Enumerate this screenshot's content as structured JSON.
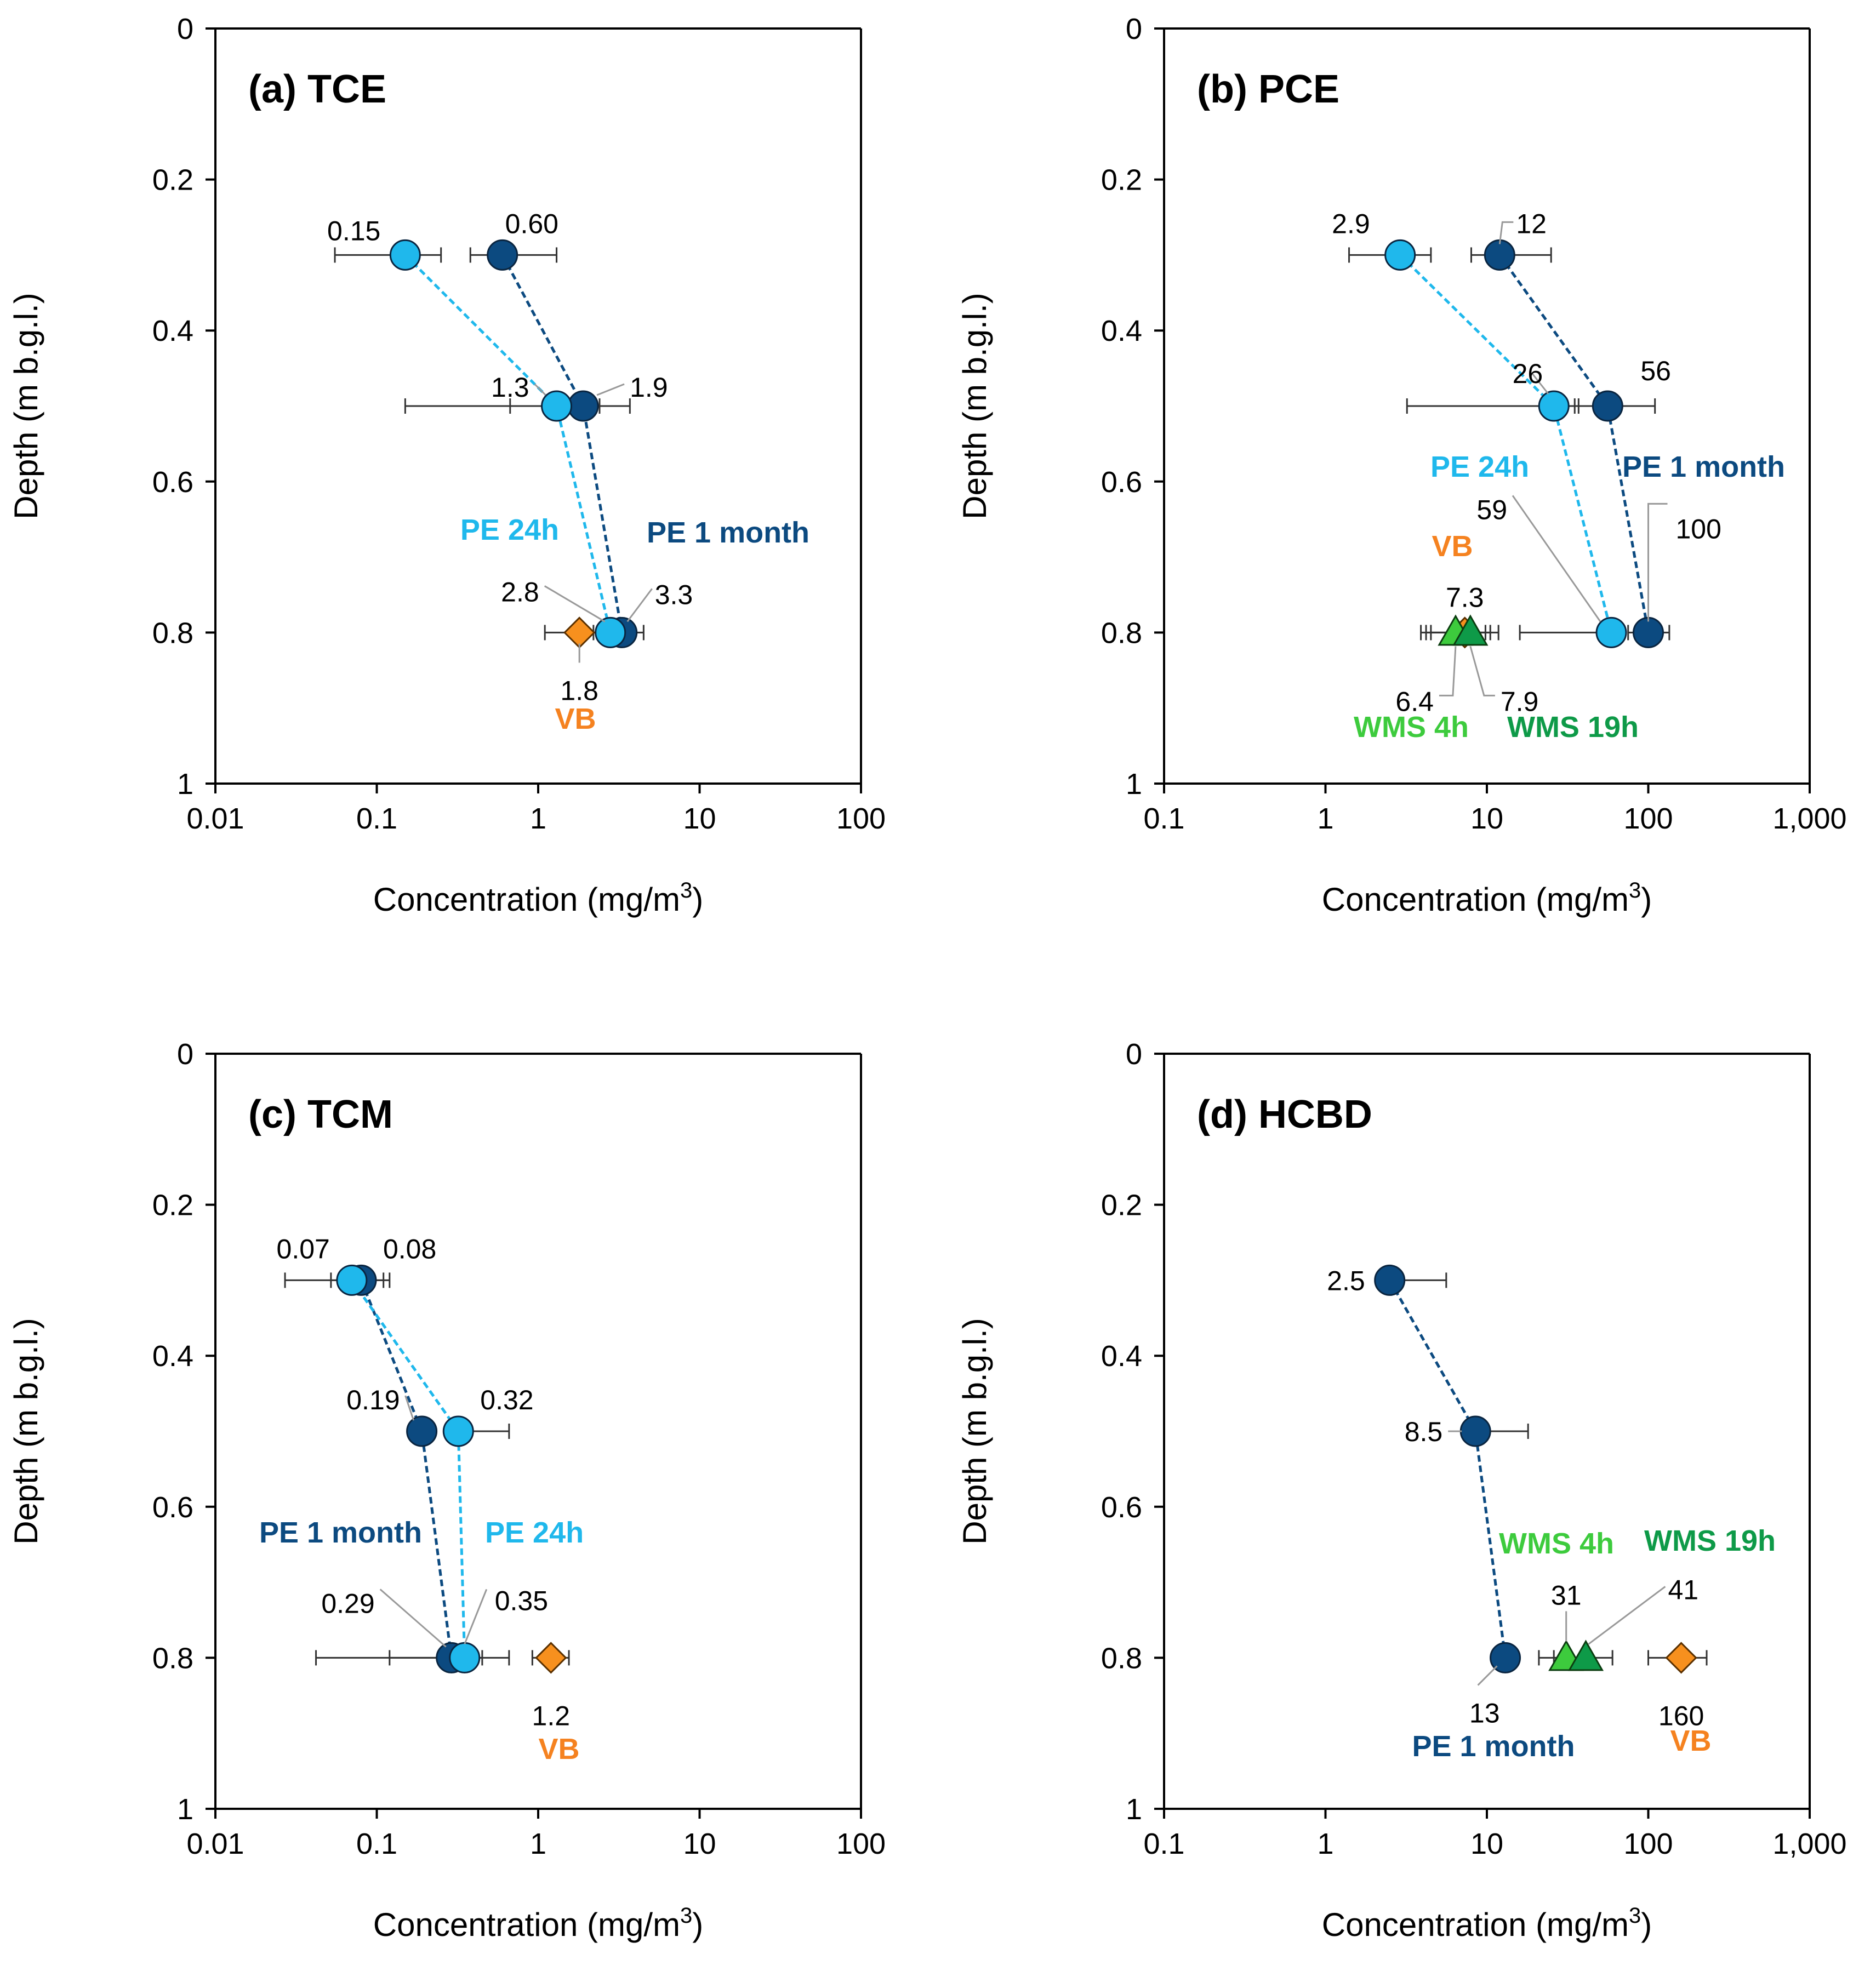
{
  "colors": {
    "pe_1month": "#0C4A80",
    "pe_24h": "#1FB8EC",
    "vb": "#F58220",
    "vb_fill": "#F7901E",
    "wms_4h": "#3DCB3D",
    "wms_19h": "#0E9A48",
    "axis": "#000000",
    "error_bar": "#333333",
    "leader": "#999999"
  },
  "chart_data": [
    {
      "type": "scatter",
      "title": "(a) TCE",
      "xlabel": "Concentration (mg/m",
      "xlabel_sup": "3",
      "xlabel_close": ")",
      "ylabel": "Depth (m b.g.l.)",
      "xscale": "log",
      "xlim": [
        0.01,
        100
      ],
      "ylim": [
        0,
        1
      ],
      "yreversed": true,
      "xticks": [
        0.01,
        0.1,
        1,
        10,
        100
      ],
      "xtick_labels": [
        "0.01",
        "0.1",
        "1",
        "10",
        "100"
      ],
      "yticks": [
        0,
        0.2,
        0.4,
        0.6,
        0.8,
        1
      ],
      "ytick_labels": [
        "0",
        "0.2",
        "0.4",
        "0.6",
        "0.8",
        "1"
      ],
      "series": [
        {
          "name": "PE 1 month",
          "marker": "circle",
          "color_key": "pe_1month",
          "connected": true,
          "points": [
            {
              "x": 0.6,
              "y": 0.3,
              "xerr": [
                0.38,
                1.3
              ],
              "label": "0.60"
            },
            {
              "x": 1.9,
              "y": 0.5,
              "xerr": [
                0.67,
                3.7
              ],
              "label": "1.9"
            },
            {
              "x": 3.3,
              "y": 0.8,
              "xerr": [
                2.4,
                4.5
              ],
              "label": "3.3"
            }
          ]
        },
        {
          "name": "PE 24h",
          "marker": "circle",
          "color_key": "pe_24h",
          "connected": true,
          "points": [
            {
              "x": 0.15,
              "y": 0.3,
              "xerr": [
                0.055,
                0.25
              ],
              "label": "0.15"
            },
            {
              "x": 1.3,
              "y": 0.5,
              "xerr": [
                0.15,
                2.4
              ],
              "label": "1.3"
            },
            {
              "x": 2.8,
              "y": 0.8,
              "xerr": [
                2.2,
                3.5
              ],
              "label": "2.8"
            }
          ]
        },
        {
          "name": "VB",
          "marker": "diamond",
          "color_key": "vb_fill",
          "connected": false,
          "points": [
            {
              "x": 1.8,
              "y": 0.8,
              "xerr": [
                1.1,
                2.5
              ],
              "label": "1.8"
            }
          ]
        }
      ],
      "annotations": [
        {
          "text": "PE 24h",
          "color_key": "pe_24h",
          "bold": true
        },
        {
          "text": "PE 1 month",
          "color_key": "pe_1month",
          "bold": true
        },
        {
          "text": "VB",
          "color_key": "vb",
          "bold": true
        }
      ]
    },
    {
      "type": "scatter",
      "title": "(b) PCE",
      "xlabel": "Concentration (mg/m",
      "xlabel_sup": "3",
      "xlabel_close": ")",
      "ylabel": "Depth (m b.g.l.)",
      "xscale": "log",
      "xlim": [
        0.1,
        1000
      ],
      "ylim": [
        0,
        1
      ],
      "yreversed": true,
      "xticks": [
        0.1,
        1,
        10,
        100,
        1000
      ],
      "xtick_labels": [
        "0.1",
        "1",
        "10",
        "100",
        "1,000"
      ],
      "yticks": [
        0,
        0.2,
        0.4,
        0.6,
        0.8,
        1
      ],
      "ytick_labels": [
        "0",
        "0.2",
        "0.4",
        "0.6",
        "0.8",
        "1"
      ],
      "series": [
        {
          "name": "PE 1 month",
          "marker": "circle",
          "color_key": "pe_1month",
          "connected": true,
          "points": [
            {
              "x": 12,
              "y": 0.3,
              "xerr": [
                8,
                25
              ],
              "label": "12"
            },
            {
              "x": 56,
              "y": 0.5,
              "xerr": [
                35,
                110
              ],
              "label": "56"
            },
            {
              "x": 100,
              "y": 0.8,
              "xerr": [
                75,
                135
              ],
              "label": "100"
            }
          ]
        },
        {
          "name": "PE 24h",
          "marker": "circle",
          "color_key": "pe_24h",
          "connected": true,
          "points": [
            {
              "x": 2.9,
              "y": 0.3,
              "xerr": [
                1.4,
                4.5
              ],
              "label": "2.9"
            },
            {
              "x": 26,
              "y": 0.5,
              "xerr": [
                3.2,
                37
              ],
              "label": "26"
            },
            {
              "x": 59,
              "y": 0.8,
              "xerr": [
                16,
                62
              ],
              "label": "59"
            }
          ]
        },
        {
          "name": "VB",
          "marker": "diamond",
          "color_key": "vb_fill",
          "connected": false,
          "points": [
            {
              "x": 7.3,
              "y": 0.8,
              "xerr": [
                4.2,
                10.5
              ],
              "label": "7.3"
            }
          ]
        },
        {
          "name": "WMS 4h",
          "marker": "triangle",
          "color_key": "wms_4h",
          "connected": false,
          "points": [
            {
              "x": 6.4,
              "y": 0.8,
              "xerr": [
                3.9,
                9.8
              ],
              "label": "6.4"
            }
          ]
        },
        {
          "name": "WMS 19h",
          "marker": "triangle",
          "color_key": "wms_19h",
          "connected": false,
          "points": [
            {
              "x": 7.9,
              "y": 0.8,
              "xerr": [
                4.5,
                11.8
              ],
              "label": "7.9"
            }
          ]
        }
      ],
      "annotations": [
        {
          "text": "PE 24h",
          "color_key": "pe_24h",
          "bold": true
        },
        {
          "text": "PE 1 month",
          "color_key": "pe_1month",
          "bold": true
        },
        {
          "text": "VB",
          "color_key": "vb",
          "bold": true
        },
        {
          "text": "WMS 4h",
          "color_key": "wms_4h",
          "bold": true
        },
        {
          "text": "WMS 19h",
          "color_key": "wms_19h",
          "bold": true
        }
      ]
    },
    {
      "type": "scatter",
      "title": "(c) TCM",
      "xlabel": "Concentration (mg/m",
      "xlabel_sup": "3",
      "xlabel_close": ")",
      "ylabel": "Depth (m b.g.l.)",
      "xscale": "log",
      "xlim": [
        0.01,
        100
      ],
      "ylim": [
        0,
        1
      ],
      "yreversed": true,
      "xticks": [
        0.01,
        0.1,
        1,
        10,
        100
      ],
      "xtick_labels": [
        "0.01",
        "0.1",
        "1",
        "10",
        "100"
      ],
      "yticks": [
        0,
        0.2,
        0.4,
        0.6,
        0.8,
        1
      ],
      "ytick_labels": [
        "0",
        "0.2",
        "0.4",
        "0.6",
        "0.8",
        "1"
      ],
      "series": [
        {
          "name": "PE 1 month",
          "marker": "circle",
          "color_key": "pe_1month",
          "connected": true,
          "points": [
            {
              "x": 0.08,
              "y": 0.3,
              "xerr": [
                0.052,
                0.12
              ],
              "label": "0.08"
            },
            {
              "x": 0.19,
              "y": 0.5,
              "xerr": null,
              "label": "0.19"
            },
            {
              "x": 0.29,
              "y": 0.8,
              "xerr": [
                0.042,
                0.45
              ],
              "label": "0.29"
            }
          ]
        },
        {
          "name": "PE 24h",
          "marker": "circle",
          "color_key": "pe_24h",
          "connected": true,
          "points": [
            {
              "x": 0.07,
              "y": 0.3,
              "xerr": [
                0.027,
                0.11
              ],
              "label": "0.07"
            },
            {
              "x": 0.32,
              "y": 0.5,
              "xerr": [
                0.32,
                0.66
              ],
              "label": "0.32"
            },
            {
              "x": 0.35,
              "y": 0.8,
              "xerr": [
                0.12,
                0.66
              ],
              "label": "0.35"
            }
          ]
        },
        {
          "name": "VB",
          "marker": "diamond",
          "color_key": "vb_fill",
          "connected": false,
          "points": [
            {
              "x": 1.2,
              "y": 0.8,
              "xerr": [
                0.92,
                1.55
              ],
              "label": "1.2"
            }
          ]
        }
      ],
      "annotations": [
        {
          "text": "PE 1 month",
          "color_key": "pe_1month",
          "bold": true
        },
        {
          "text": "PE 24h",
          "color_key": "pe_24h",
          "bold": true
        },
        {
          "text": "VB",
          "color_key": "vb",
          "bold": true
        }
      ]
    },
    {
      "type": "scatter",
      "title": "(d) HCBD",
      "xlabel": "Concentration (mg/m",
      "xlabel_sup": "3",
      "xlabel_close": ")",
      "ylabel": "Depth (m b.g.l.)",
      "xscale": "log",
      "xlim": [
        0.1,
        1000
      ],
      "ylim": [
        0,
        1
      ],
      "yreversed": true,
      "xticks": [
        0.1,
        1,
        10,
        100,
        1000
      ],
      "xtick_labels": [
        "0.1",
        "1",
        "10",
        "100",
        "1,000"
      ],
      "yticks": [
        0,
        0.2,
        0.4,
        0.6,
        0.8,
        1
      ],
      "ytick_labels": [
        "0",
        "0.2",
        "0.4",
        "0.6",
        "0.8",
        "1"
      ],
      "series": [
        {
          "name": "PE 1 month",
          "marker": "circle",
          "color_key": "pe_1month",
          "connected": true,
          "points": [
            {
              "x": 2.5,
              "y": 0.3,
              "xerr": [
                2.5,
                5.6
              ],
              "label": "2.5"
            },
            {
              "x": 8.5,
              "y": 0.5,
              "xerr": [
                8.5,
                18
              ],
              "label": "8.5"
            },
            {
              "x": 13,
              "y": 0.8,
              "xerr": null,
              "label": "13"
            }
          ]
        },
        {
          "name": "WMS 4h",
          "marker": "triangle",
          "color_key": "wms_4h",
          "connected": false,
          "points": [
            {
              "x": 31,
              "y": 0.8,
              "xerr": [
                21,
                42
              ],
              "label": "31"
            }
          ]
        },
        {
          "name": "WMS 19h",
          "marker": "triangle",
          "color_key": "wms_19h",
          "connected": false,
          "points": [
            {
              "x": 41,
              "y": 0.8,
              "xerr": [
                26,
                60
              ],
              "label": "41"
            }
          ]
        },
        {
          "name": "VB",
          "marker": "diamond",
          "color_key": "vb_fill",
          "connected": false,
          "points": [
            {
              "x": 160,
              "y": 0.8,
              "xerr": [
                100,
                230
              ],
              "label": "160"
            }
          ]
        }
      ],
      "annotations": [
        {
          "text": "WMS 4h",
          "color_key": "wms_4h",
          "bold": true
        },
        {
          "text": "WMS 19h",
          "color_key": "wms_19h",
          "bold": true
        },
        {
          "text": "PE 1 month",
          "color_key": "pe_1month",
          "bold": true
        },
        {
          "text": "VB",
          "color_key": "vb",
          "bold": true
        }
      ]
    }
  ]
}
